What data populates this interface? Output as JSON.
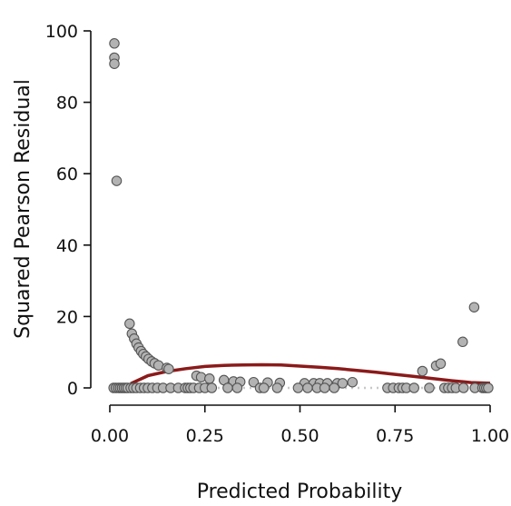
{
  "chart_data": {
    "type": "scatter",
    "title": "",
    "xlabel": "Predicted Probability",
    "ylabel": "Squared Pearson Residual",
    "xlim": [
      0,
      1
    ],
    "ylim": [
      0,
      100
    ],
    "x_ticks": [
      "0.00",
      "0.25",
      "0.50",
      "0.75",
      "1.00"
    ],
    "y_ticks": [
      "0",
      "20",
      "40",
      "60",
      "80",
      "100"
    ],
    "grid": false,
    "legend": "none",
    "colors": {
      "points": "#b3b3b3",
      "point_edge": "#555555",
      "smooth": "#8b1a1a",
      "reference": "#c8c8c8"
    },
    "points": [
      {
        "x": 0.012,
        "y": 96.5
      },
      {
        "x": 0.012,
        "y": 92.5
      },
      {
        "x": 0.012,
        "y": 90.8
      },
      {
        "x": 0.018,
        "y": 58.0
      },
      {
        "x": 0.052,
        "y": 18.0
      },
      {
        "x": 0.058,
        "y": 15.2
      },
      {
        "x": 0.064,
        "y": 13.8
      },
      {
        "x": 0.07,
        "y": 12.4
      },
      {
        "x": 0.076,
        "y": 11.3
      },
      {
        "x": 0.082,
        "y": 10.3
      },
      {
        "x": 0.088,
        "y": 9.5
      },
      {
        "x": 0.095,
        "y": 8.8
      },
      {
        "x": 0.102,
        "y": 8.1
      },
      {
        "x": 0.11,
        "y": 7.4
      },
      {
        "x": 0.118,
        "y": 6.9
      },
      {
        "x": 0.128,
        "y": 6.3
      },
      {
        "x": 0.15,
        "y": 5.6
      },
      {
        "x": 0.155,
        "y": 5.3
      },
      {
        "x": 0.228,
        "y": 3.4
      },
      {
        "x": 0.24,
        "y": 3.0
      },
      {
        "x": 0.262,
        "y": 2.6
      },
      {
        "x": 0.3,
        "y": 2.2
      },
      {
        "x": 0.325,
        "y": 1.8
      },
      {
        "x": 0.343,
        "y": 1.7
      },
      {
        "x": 0.378,
        "y": 1.6
      },
      {
        "x": 0.415,
        "y": 1.5
      },
      {
        "x": 0.447,
        "y": 1.4
      },
      {
        "x": 0.512,
        "y": 1.3
      },
      {
        "x": 0.536,
        "y": 1.3
      },
      {
        "x": 0.552,
        "y": 1.3
      },
      {
        "x": 0.572,
        "y": 1.3
      },
      {
        "x": 0.598,
        "y": 1.3
      },
      {
        "x": 0.612,
        "y": 1.3
      },
      {
        "x": 0.638,
        "y": 1.6
      },
      {
        "x": 0.822,
        "y": 4.7
      },
      {
        "x": 0.858,
        "y": 6.2
      },
      {
        "x": 0.87,
        "y": 6.8
      },
      {
        "x": 0.928,
        "y": 12.9
      },
      {
        "x": 0.958,
        "y": 22.6
      },
      {
        "x": 0.01,
        "y": 0
      },
      {
        "x": 0.016,
        "y": 0
      },
      {
        "x": 0.022,
        "y": 0
      },
      {
        "x": 0.027,
        "y": 0
      },
      {
        "x": 0.032,
        "y": 0
      },
      {
        "x": 0.037,
        "y": 0
      },
      {
        "x": 0.042,
        "y": 0
      },
      {
        "x": 0.047,
        "y": 0
      },
      {
        "x": 0.055,
        "y": 0
      },
      {
        "x": 0.062,
        "y": 0
      },
      {
        "x": 0.07,
        "y": 0
      },
      {
        "x": 0.08,
        "y": 0
      },
      {
        "x": 0.09,
        "y": 0
      },
      {
        "x": 0.1,
        "y": 0
      },
      {
        "x": 0.112,
        "y": 0
      },
      {
        "x": 0.125,
        "y": 0
      },
      {
        "x": 0.14,
        "y": 0
      },
      {
        "x": 0.16,
        "y": 0
      },
      {
        "x": 0.18,
        "y": 0
      },
      {
        "x": 0.198,
        "y": 0
      },
      {
        "x": 0.205,
        "y": 0
      },
      {
        "x": 0.212,
        "y": 0
      },
      {
        "x": 0.22,
        "y": 0
      },
      {
        "x": 0.235,
        "y": 0
      },
      {
        "x": 0.25,
        "y": 0
      },
      {
        "x": 0.268,
        "y": 0
      },
      {
        "x": 0.31,
        "y": 0
      },
      {
        "x": 0.335,
        "y": 0
      },
      {
        "x": 0.395,
        "y": 0
      },
      {
        "x": 0.405,
        "y": 0
      },
      {
        "x": 0.44,
        "y": 0
      },
      {
        "x": 0.495,
        "y": 0
      },
      {
        "x": 0.52,
        "y": 0
      },
      {
        "x": 0.545,
        "y": 0
      },
      {
        "x": 0.565,
        "y": 0
      },
      {
        "x": 0.59,
        "y": 0
      },
      {
        "x": 0.73,
        "y": 0
      },
      {
        "x": 0.745,
        "y": 0
      },
      {
        "x": 0.76,
        "y": 0
      },
      {
        "x": 0.77,
        "y": 0
      },
      {
        "x": 0.78,
        "y": 0
      },
      {
        "x": 0.8,
        "y": 0
      },
      {
        "x": 0.84,
        "y": 0
      },
      {
        "x": 0.88,
        "y": 0
      },
      {
        "x": 0.89,
        "y": 0
      },
      {
        "x": 0.9,
        "y": 0
      },
      {
        "x": 0.91,
        "y": 0
      },
      {
        "x": 0.93,
        "y": 0
      },
      {
        "x": 0.96,
        "y": 0
      },
      {
        "x": 0.98,
        "y": 0
      },
      {
        "x": 0.985,
        "y": 0
      },
      {
        "x": 0.99,
        "y": 0
      },
      {
        "x": 0.995,
        "y": 0
      }
    ],
    "smooth_line": {
      "x": [
        0.055,
        0.1,
        0.15,
        0.2,
        0.25,
        0.3,
        0.35,
        0.4,
        0.45,
        0.5,
        0.55,
        0.6,
        0.65,
        0.7,
        0.75,
        0.8,
        0.85,
        0.9,
        0.95,
        1.0
      ],
      "y": [
        1.2,
        3.4,
        4.6,
        5.4,
        6.0,
        6.3,
        6.45,
        6.5,
        6.4,
        6.1,
        5.8,
        5.4,
        4.9,
        4.4,
        3.8,
        3.2,
        2.6,
        2.0,
        1.5,
        1.3
      ]
    },
    "reference_line": {
      "x": [
        0.0,
        1.0
      ],
      "y": [
        0,
        0
      ]
    }
  }
}
